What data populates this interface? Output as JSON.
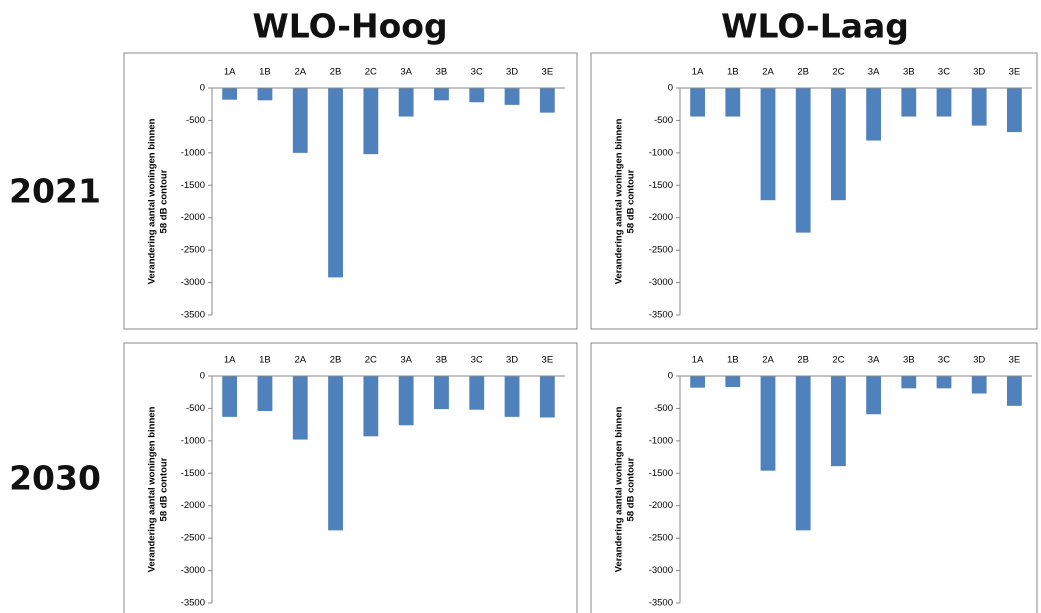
{
  "columns": [
    "WLO-Hoog",
    "WLO-Laag"
  ],
  "rows": [
    "2021",
    "2030"
  ],
  "chart_data": [
    {
      "type": "bar",
      "categories": [
        "1A",
        "1B",
        "2A",
        "2B",
        "2C",
        "3A",
        "3B",
        "3C",
        "3D",
        "3E"
      ],
      "values": [
        -180,
        -190,
        -1000,
        -2920,
        -1020,
        -440,
        -190,
        -220,
        -260,
        -380
      ],
      "color": "#4f81bd",
      "ylim": [
        -3500,
        0
      ],
      "yticks": [
        0,
        -500,
        -1000,
        -1500,
        -2000,
        -2500,
        -3000,
        -3500
      ],
      "ylabel": [
        "Verandering aantal woningen binnen",
        "58 dB contour"
      ],
      "grid": false
    },
    {
      "type": "bar",
      "categories": [
        "1A",
        "1B",
        "2A",
        "2B",
        "2C",
        "3A",
        "3B",
        "3C",
        "3D",
        "3E"
      ],
      "values": [
        -440,
        -440,
        -1730,
        -2230,
        -1730,
        -810,
        -440,
        -440,
        -580,
        -680
      ],
      "color": "#4f81bd",
      "ylim": [
        -3500,
        0
      ],
      "yticks": [
        0,
        -500,
        -1000,
        -1500,
        -2000,
        -2500,
        -3000,
        -3500
      ],
      "ylabel": [
        "Verandering aantal woningen binnen",
        "58 dB contour"
      ],
      "grid": false
    },
    {
      "type": "bar",
      "categories": [
        "1A",
        "1B",
        "2A",
        "2B",
        "2C",
        "3A",
        "3B",
        "3C",
        "3D",
        "3E"
      ],
      "values": [
        -630,
        -540,
        -980,
        -2380,
        -930,
        -760,
        -510,
        -520,
        -630,
        -640
      ],
      "color": "#4f81bd",
      "ylim": [
        -3500,
        0
      ],
      "yticks": [
        0,
        -500,
        -1000,
        -1500,
        -2000,
        -2500,
        -3000,
        -3500
      ],
      "ylabel": [
        "Verandering aantal woningen binnen",
        "58 dB contour"
      ],
      "grid": false
    },
    {
      "type": "bar",
      "categories": [
        "1A",
        "1B",
        "2A",
        "2B",
        "2C",
        "3A",
        "3B",
        "3C",
        "3D",
        "3E"
      ],
      "values": [
        -180,
        -170,
        -1460,
        -2380,
        -1390,
        -590,
        -190,
        -190,
        -270,
        -460
      ],
      "color": "#4f81bd",
      "ylim": [
        -3500,
        0
      ],
      "yticks": [
        0,
        -500,
        -1000,
        -1500,
        -2000,
        -2500,
        -3000,
        -3500
      ],
      "ylabel": [
        "Verandering aantal woningen binnen",
        "58 dB contour"
      ],
      "grid": false
    }
  ]
}
